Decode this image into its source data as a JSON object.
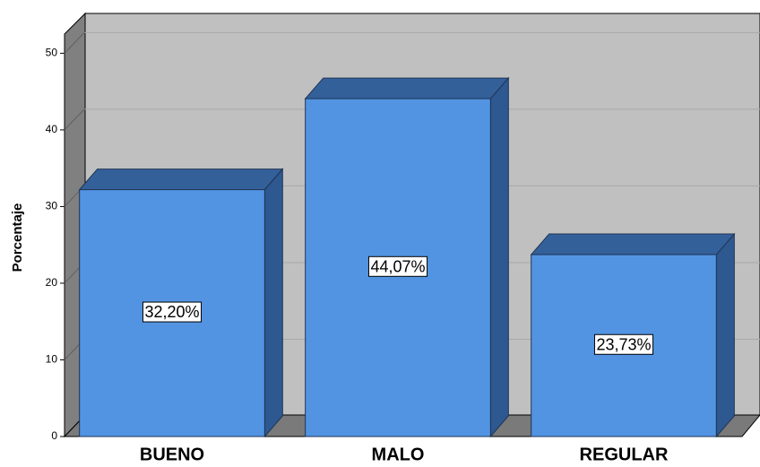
{
  "chart_data": {
    "type": "bar3d",
    "y_label": "Porcentaje",
    "categories": [
      "BUENO",
      "MALO",
      "REGULAR"
    ],
    "values": [
      32.2,
      44.07,
      23.73
    ],
    "value_labels": [
      "32,20%",
      "44,07%",
      "23,73%"
    ],
    "color": "#5294e2",
    "ylim": [
      0,
      52.5
    ],
    "yticks": [
      0,
      10,
      20,
      30,
      40,
      50
    ],
    "grid": true
  }
}
